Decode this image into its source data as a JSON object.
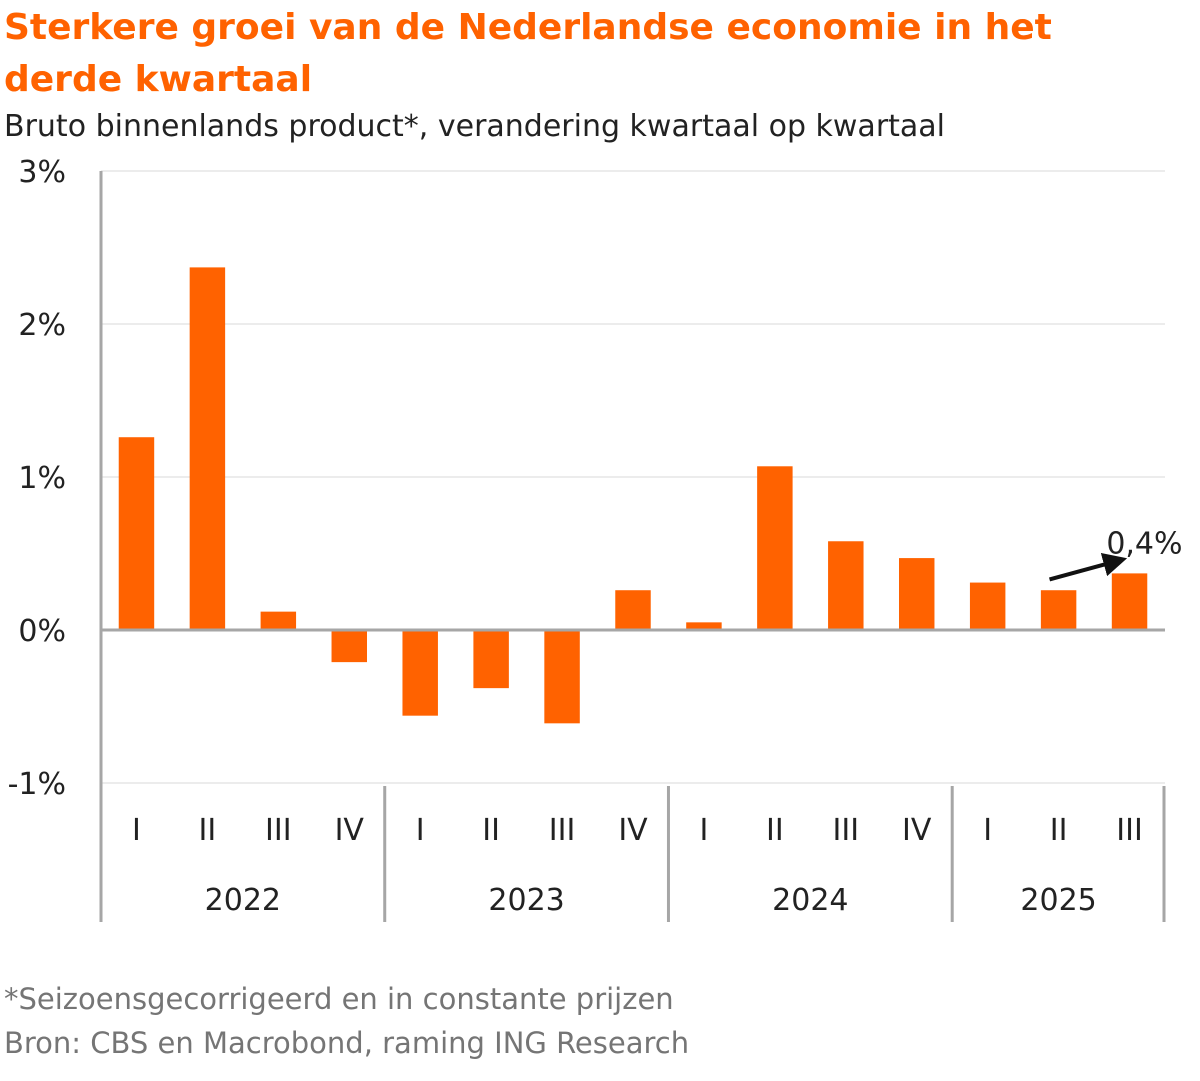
{
  "title": "Sterkere groei van de Nederlandse economie in het derde kwartaal",
  "subtitle": "Bruto binnenlands product*, verandering kwartaal op kwartaal",
  "footnote_1": "*Seizoensgecorrigeerd en in constante prijzen",
  "footnote_2": "Bron: CBS en Macrobond, raming ING Research",
  "colors": {
    "bar": "#ff6200",
    "title": "#ff6200",
    "grid": "#e6e6e6",
    "axis": "#a6a6a6",
    "text": "#222222",
    "footnote": "#757575"
  },
  "chart_data": {
    "type": "bar",
    "ylabel": "",
    "ylim": [
      -1,
      3
    ],
    "yticks": [
      -1,
      0,
      1,
      2,
      3
    ],
    "ytick_labels": [
      "-1%",
      "0%",
      "1%",
      "2%",
      "3%"
    ],
    "grid": true,
    "groups": [
      {
        "label": "2022",
        "categories": [
          "I",
          "II",
          "III",
          "IV"
        ]
      },
      {
        "label": "2023",
        "categories": [
          "I",
          "II",
          "III",
          "IV"
        ]
      },
      {
        "label": "2024",
        "categories": [
          "I",
          "II",
          "III",
          "IV"
        ]
      },
      {
        "label": "2025",
        "categories": [
          "I",
          "II",
          "III"
        ]
      }
    ],
    "values": [
      1.26,
      2.37,
      0.12,
      -0.21,
      -0.56,
      -0.38,
      -0.61,
      0.26,
      0.05,
      1.07,
      0.58,
      0.47,
      0.31,
      0.26,
      0.37
    ],
    "annotation": {
      "text": "0,4%",
      "index": 14
    }
  }
}
